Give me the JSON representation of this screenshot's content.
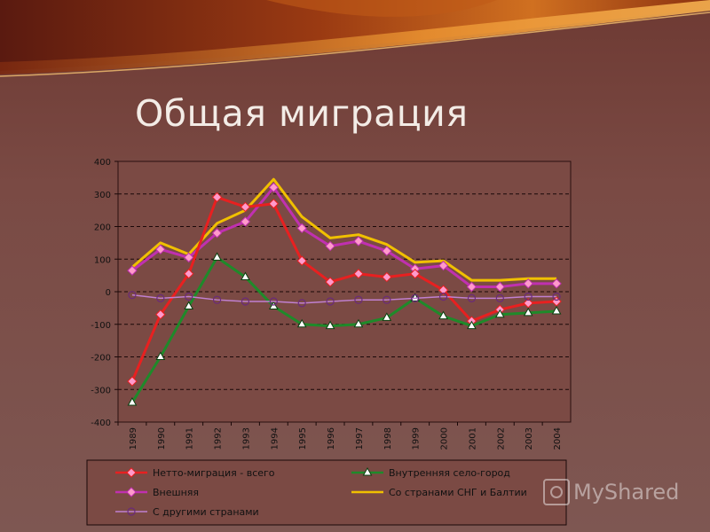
{
  "slide": {
    "title": "Общая миграция"
  },
  "watermark": {
    "text": "MyShared"
  },
  "chart_data": {
    "type": "line",
    "categories": [
      "1989",
      "1990",
      "1991",
      "1992",
      "1993",
      "1994",
      "1995",
      "1996",
      "1997",
      "1998",
      "1999",
      "2000",
      "2001",
      "2002",
      "2003",
      "2004"
    ],
    "ylim": [
      -400,
      400
    ],
    "yticks": [
      400,
      300,
      200,
      100,
      0,
      -100,
      -200,
      -300,
      -400
    ],
    "grid": true,
    "legend_position": "bottom",
    "series": [
      {
        "name": "Со странами СНГ и Балтии",
        "color": "#f0c000",
        "marker": "none",
        "values": [
          75,
          150,
          115,
          210,
          250,
          345,
          230,
          165,
          175,
          145,
          90,
          95,
          35,
          35,
          40,
          40
        ]
      },
      {
        "name": "Внешняя",
        "color": "#c030b0",
        "marker": "diamond",
        "values": [
          65,
          130,
          105,
          180,
          215,
          320,
          195,
          140,
          155,
          125,
          70,
          80,
          15,
          15,
          25,
          25
        ]
      },
      {
        "name": "Нетто-миграция - всего",
        "color": "#e82020",
        "marker": "diamond",
        "values": [
          -275,
          -70,
          55,
          290,
          260,
          270,
          95,
          30,
          55,
          45,
          55,
          5,
          -90,
          -55,
          -35,
          -30
        ]
      },
      {
        "name": "Внутренняя село-город",
        "color": "#1f8a2a",
        "marker": "triangle",
        "values": [
          -340,
          -200,
          -45,
          105,
          45,
          -45,
          -100,
          -105,
          -100,
          -80,
          -20,
          -75,
          -105,
          -70,
          -65,
          -60
        ]
      },
      {
        "name": "С другими странами",
        "color": "#c080d0",
        "marker": "circle",
        "values": [
          -10,
          -20,
          -15,
          -25,
          -30,
          -30,
          -35,
          -30,
          -25,
          -25,
          -20,
          -15,
          -20,
          -20,
          -15,
          -15
        ]
      }
    ],
    "legend_order": [
      2,
      3,
      1,
      0,
      4
    ]
  }
}
